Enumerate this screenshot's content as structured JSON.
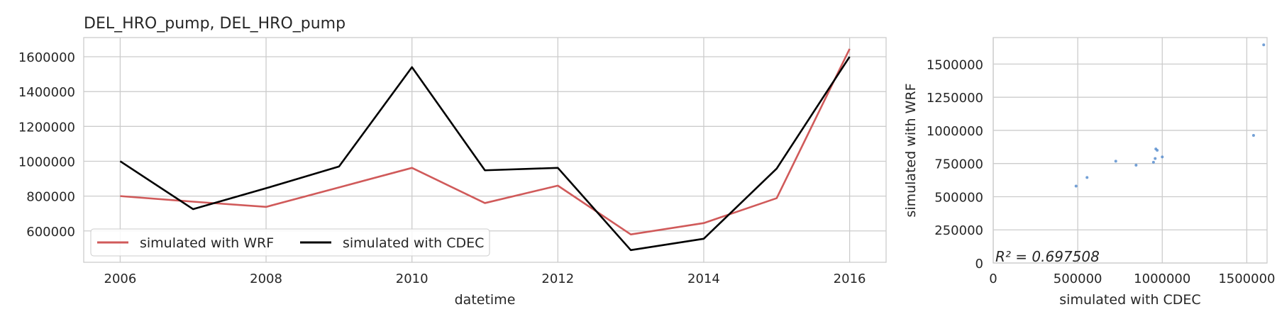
{
  "chart_data": [
    {
      "type": "line",
      "title": "DEL_HRO_pump, DEL_HRO_pump",
      "xlabel": "datetime",
      "ylabel": "",
      "x": [
        2006,
        2007,
        2008,
        2009,
        2010,
        2011,
        2012,
        2013,
        2014,
        2015,
        2016
      ],
      "xlim": [
        2005.5,
        2016.5
      ],
      "ylim": [
        420000,
        1710000
      ],
      "xticks": [
        2006,
        2008,
        2010,
        2012,
        2014,
        2016
      ],
      "yticks": [
        600000,
        800000,
        1000000,
        1200000,
        1400000,
        1600000
      ],
      "grid": true,
      "legend": "lower-left",
      "series": [
        {
          "name": "simulated with WRF",
          "color": "#d05a5a",
          "values": [
            800000,
            768000,
            738000,
            850000,
            962000,
            760000,
            860000,
            580000,
            645000,
            788000,
            1645000
          ]
        },
        {
          "name": "simulated with CDEC",
          "color": "#000000",
          "values": [
            1000000,
            725000,
            845000,
            970000,
            1540000,
            948000,
            962000,
            490000,
            555000,
            958000,
            1600000
          ]
        }
      ]
    },
    {
      "type": "scatter",
      "title": "",
      "xlabel": "simulated with CDEC",
      "ylabel": "simulated with WRF",
      "xlim": [
        0,
        1620000
      ],
      "ylim": [
        0,
        1700000
      ],
      "xticks": [
        0,
        500000,
        1000000,
        1500000
      ],
      "yticks": [
        0,
        250000,
        500000,
        750000,
        1000000,
        1250000,
        1500000
      ],
      "grid": true,
      "color": "#5b8fcf",
      "points": [
        {
          "x": 490000,
          "y": 580000
        },
        {
          "x": 555000,
          "y": 645000
        },
        {
          "x": 725000,
          "y": 768000
        },
        {
          "x": 845000,
          "y": 738000
        },
        {
          "x": 948000,
          "y": 760000
        },
        {
          "x": 958000,
          "y": 788000
        },
        {
          "x": 962000,
          "y": 860000
        },
        {
          "x": 970000,
          "y": 850000
        },
        {
          "x": 1000000,
          "y": 800000
        },
        {
          "x": 1540000,
          "y": 962000
        },
        {
          "x": 1600000,
          "y": 1645000
        }
      ],
      "annotation": "R² = 0.697508"
    }
  ]
}
